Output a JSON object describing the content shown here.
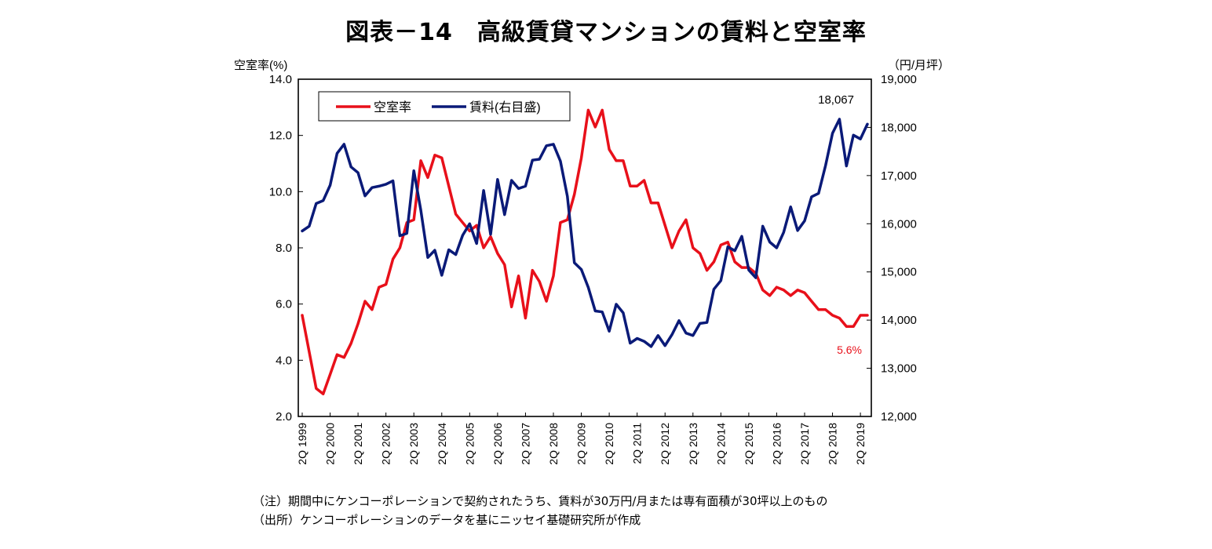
{
  "chart_data": {
    "type": "line",
    "title": "図表－14　高級賃貸マンションの賃料と空室率",
    "left_axis_label": "空室率(%)",
    "right_axis_label": "（円/月坪）",
    "left_ylim": [
      2.0,
      14.0
    ],
    "right_ylim": [
      12000,
      19000
    ],
    "left_ticks": [
      "14.0",
      "12.0",
      "10.0",
      "8.0",
      "6.0",
      "4.0",
      "2.0"
    ],
    "right_ticks": [
      "19,000",
      "18,000",
      "17,000",
      "16,000",
      "15,000",
      "14,000",
      "13,000",
      "12,000"
    ],
    "x_tick_labels": [
      "2Q 1999",
      "2Q 2000",
      "2Q 2001",
      "2Q 2002",
      "2Q 2003",
      "2Q 2004",
      "2Q 2005",
      "2Q 2006",
      "2Q 2007",
      "2Q 2008",
      "2Q 2009",
      "2Q 2010",
      "2Q 2011",
      "2Q 2012",
      "2Q 2013",
      "2Q 2014",
      "2Q 2015",
      "2Q 2016",
      "2Q 2017",
      "2Q 2018",
      "2Q 2019"
    ],
    "legend": [
      "空室率",
      "賃料(右目盛)"
    ],
    "series": [
      {
        "name": "空室率",
        "axis": "left",
        "color": "#e8101a",
        "values": [
          5.6,
          4.3,
          3.0,
          2.8,
          3.5,
          4.2,
          4.1,
          4.6,
          5.3,
          6.1,
          5.8,
          6.6,
          6.7,
          7.6,
          8.0,
          8.9,
          9.0,
          11.1,
          10.5,
          11.3,
          11.2,
          10.2,
          9.2,
          8.9,
          8.6,
          8.8,
          8.0,
          8.4,
          7.8,
          7.4,
          5.9,
          7.0,
          5.5,
          7.2,
          6.8,
          6.1,
          7.0,
          8.9,
          9.0,
          9.9,
          11.2,
          12.9,
          12.3,
          12.9,
          11.5,
          11.1,
          11.1,
          10.2,
          10.2,
          10.4,
          9.6,
          9.6,
          8.8,
          8.0,
          8.6,
          9.0,
          8.0,
          7.8,
          7.2,
          7.5,
          8.1,
          8.2,
          7.5,
          7.3,
          7.3,
          7.1,
          6.5,
          6.3,
          6.6,
          6.5,
          6.3,
          6.5,
          6.4,
          6.1,
          5.8,
          5.8,
          5.6,
          5.5,
          5.2,
          5.2,
          5.6,
          5.6
        ]
      },
      {
        "name": "賃料(右目盛)",
        "axis": "right",
        "color": "#0a1a78",
        "values": [
          15850,
          15950,
          16420,
          16480,
          16800,
          17460,
          17650,
          17180,
          17060,
          16580,
          16750,
          16780,
          16820,
          16890,
          15750,
          15800,
          17100,
          16280,
          15300,
          15450,
          14930,
          15460,
          15360,
          15760,
          16000,
          15590,
          16690,
          15780,
          16920,
          16190,
          16900,
          16730,
          16780,
          17320,
          17340,
          17620,
          17650,
          17300,
          16570,
          15190,
          15050,
          14680,
          14190,
          14170,
          13770,
          14330,
          14150,
          13520,
          13620,
          13560,
          13450,
          13680,
          13470,
          13700,
          13990,
          13730,
          13680,
          13930,
          13950,
          14640,
          14820,
          15520,
          15440,
          15740,
          15040,
          14880,
          15950,
          15620,
          15500,
          15820,
          16350,
          15860,
          16060,
          16560,
          16630,
          17210,
          17880,
          18170,
          17200,
          17840,
          17760,
          18067
        ]
      }
    ],
    "annotations": {
      "rent_last_label": "18,067",
      "vacancy_last_label": "5.6%"
    }
  },
  "notes": {
    "note": "（注）期間中にケンコーポレーションで契約されたうち、賃料が30万円/月または専有面積が30坪以上のもの",
    "source": "（出所）ケンコーポレーションのデータを基にニッセイ基礎研究所が作成"
  }
}
